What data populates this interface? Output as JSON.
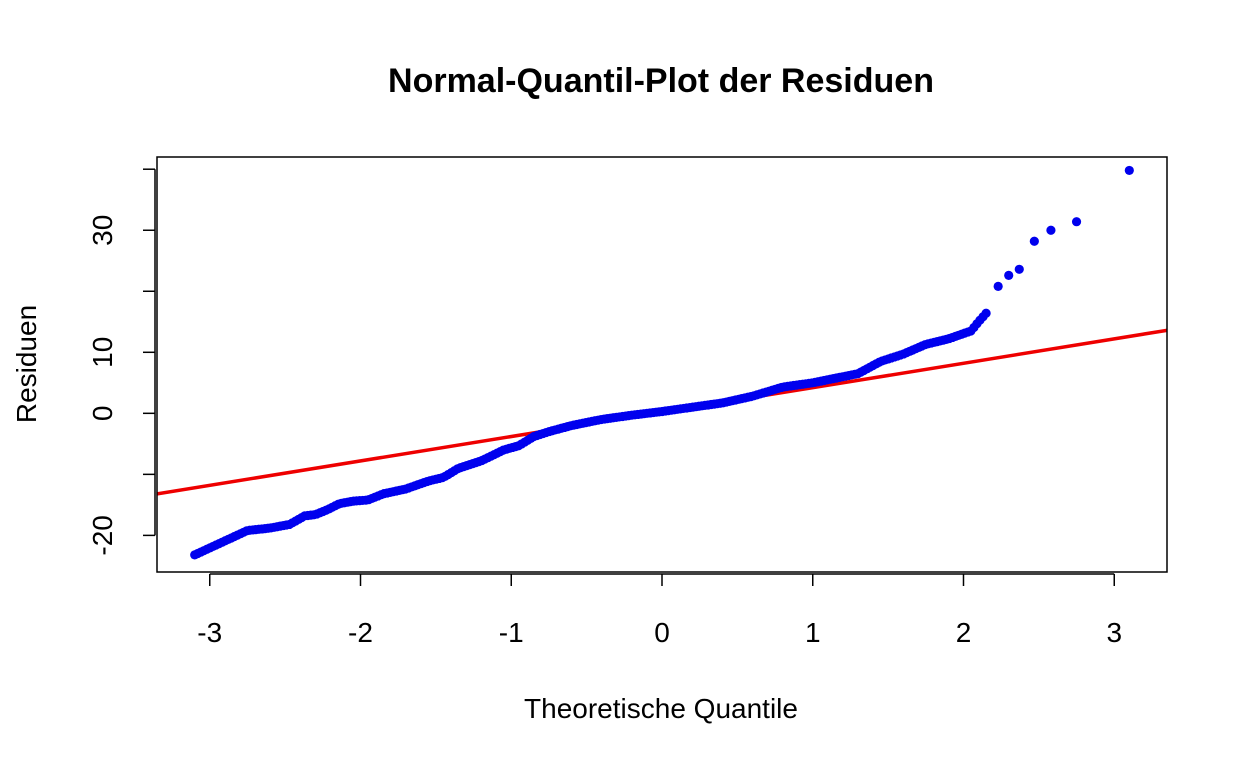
{
  "chart_data": {
    "type": "scatter",
    "title": "Normal-Quantil-Plot der Residuen",
    "xlabel": "Theoretische Quantile",
    "ylabel": "Residuen",
    "xlim": [
      -3.35,
      3.35
    ],
    "ylim": [
      -26,
      42
    ],
    "xticks": [
      -3,
      -2,
      -1,
      0,
      1,
      2,
      3
    ],
    "xtick_labels": [
      "-3",
      "-2",
      "-1",
      "0",
      "1",
      "2",
      "3"
    ],
    "yticks": [
      -20,
      -10,
      0,
      10,
      20,
      30,
      40
    ],
    "ytick_labels": [
      "-20",
      "",
      "0",
      "10",
      "",
      "30",
      ""
    ],
    "grid": false,
    "legend": "none",
    "colors": {
      "points": "#0000ee",
      "reference_line": "#ee0000"
    },
    "reference_line": {
      "slope": 4.0,
      "intercept": 0.2
    },
    "series": [
      {
        "kind": "points",
        "anchors": [
          [
            -3.1,
            -23.2
          ],
          [
            -2.75,
            -19.2
          ],
          [
            -2.6,
            -18.8
          ],
          [
            -2.47,
            -18.2
          ],
          [
            -2.37,
            -16.8
          ],
          [
            -2.3,
            -16.6
          ],
          [
            -2.22,
            -15.8
          ],
          [
            -2.14,
            -14.8
          ],
          [
            -2.05,
            -14.4
          ],
          [
            -1.95,
            -14.2
          ],
          [
            -1.85,
            -13.2
          ],
          [
            -1.7,
            -12.4
          ],
          [
            -1.55,
            -11.1
          ],
          [
            -1.45,
            -10.5
          ],
          [
            -1.35,
            -9.0
          ],
          [
            -1.2,
            -7.8
          ],
          [
            -1.05,
            -6.0
          ],
          [
            -0.95,
            -5.3
          ],
          [
            -0.85,
            -3.8
          ],
          [
            -0.75,
            -3.0
          ],
          [
            -0.6,
            -2.0
          ],
          [
            -0.4,
            -1.0
          ],
          [
            -0.2,
            -0.3
          ],
          [
            0.0,
            0.3
          ],
          [
            0.2,
            1.0
          ],
          [
            0.4,
            1.7
          ],
          [
            0.6,
            2.8
          ],
          [
            0.8,
            4.3
          ],
          [
            1.0,
            5.0
          ],
          [
            1.2,
            6.0
          ],
          [
            1.3,
            6.5
          ],
          [
            1.45,
            8.5
          ],
          [
            1.6,
            9.7
          ],
          [
            1.75,
            11.3
          ],
          [
            1.9,
            12.2
          ],
          [
            2.05,
            13.5
          ],
          [
            2.1,
            15.0
          ],
          [
            2.15,
            16.4
          ]
        ],
        "count": 260,
        "extremes": [
          [
            2.23,
            20.8
          ],
          [
            2.3,
            22.6
          ],
          [
            2.37,
            23.6
          ],
          [
            2.47,
            28.2
          ],
          [
            2.58,
            30.0
          ],
          [
            2.75,
            31.4
          ],
          [
            3.1,
            39.8
          ]
        ]
      }
    ]
  }
}
